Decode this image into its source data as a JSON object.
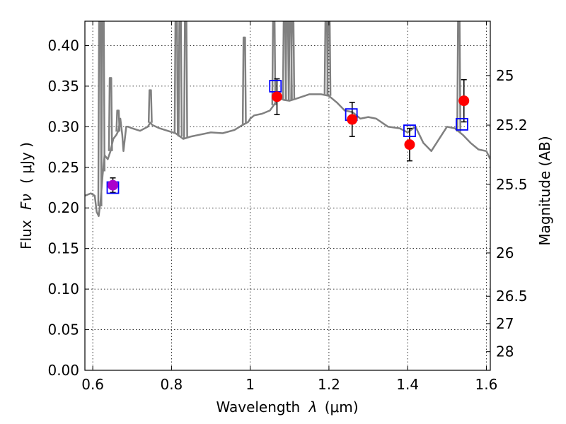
{
  "chart_data": {
    "type": "line",
    "xlabel": "Wavelength",
    "xlabel_symbol": "λ",
    "xlabel_unit": "(μm)",
    "ylabel": "Flux",
    "ylabel_symbol": "Fν",
    "ylabel_unit": "( μJy )",
    "y2label": "Magnitude (AB)",
    "xlim": [
      0.58,
      1.61
    ],
    "ylim": [
      0.0,
      0.43
    ],
    "grid": true,
    "x_ticks": [
      {
        "value": 0.6,
        "label": "0.6"
      },
      {
        "value": 0.8,
        "label": "0.8"
      },
      {
        "value": 1.0,
        "label": "1"
      },
      {
        "value": 1.2,
        "label": "1.2"
      },
      {
        "value": 1.4,
        "label": "1.4"
      },
      {
        "value": 1.6,
        "label": "1.6"
      }
    ],
    "y_ticks": [
      {
        "value": 0.0,
        "label": "0.00"
      },
      {
        "value": 0.05,
        "label": "0.05"
      },
      {
        "value": 0.1,
        "label": "0.10"
      },
      {
        "value": 0.15,
        "label": "0.15"
      },
      {
        "value": 0.2,
        "label": "0.20"
      },
      {
        "value": 0.25,
        "label": "0.25"
      },
      {
        "value": 0.3,
        "label": "0.30"
      },
      {
        "value": 0.35,
        "label": "0.35"
      },
      {
        "value": 0.4,
        "label": "0.40"
      }
    ],
    "y2_ticks": [
      {
        "value": 25,
        "label": "25"
      },
      {
        "value": 25.2,
        "label": "25.2"
      },
      {
        "value": 25.5,
        "label": "25.5"
      },
      {
        "value": 26,
        "label": "26"
      },
      {
        "value": 26.5,
        "label": "26.5"
      },
      {
        "value": 27,
        "label": "27"
      },
      {
        "value": 28,
        "label": "28"
      }
    ],
    "series": [
      {
        "name": "model spectrum",
        "kind": "line",
        "color": "#808080",
        "x": [
          0.58,
          0.595,
          0.605,
          0.61,
          0.615,
          0.62,
          0.625,
          0.63,
          0.638,
          0.645,
          0.652,
          0.66,
          0.665,
          0.67,
          0.675,
          0.678,
          0.685,
          0.69,
          0.7,
          0.72,
          0.74,
          0.746,
          0.752,
          0.77,
          0.79,
          0.81,
          0.83,
          0.85,
          0.87,
          0.9,
          0.93,
          0.96,
          0.98,
          0.995,
          1.0,
          1.01,
          1.03,
          1.05,
          1.065,
          1.075,
          1.085,
          1.1,
          1.12,
          1.15,
          1.18,
          1.2,
          1.22,
          1.24,
          1.26,
          1.28,
          1.3,
          1.32,
          1.35,
          1.38,
          1.4,
          1.42,
          1.44,
          1.46,
          1.48,
          1.5,
          1.52,
          1.54,
          1.56,
          1.58,
          1.6,
          1.61
        ],
        "y": [
          0.215,
          0.218,
          0.215,
          0.195,
          0.19,
          0.21,
          0.24,
          0.265,
          0.26,
          0.27,
          0.285,
          0.29,
          0.295,
          0.31,
          0.29,
          0.27,
          0.3,
          0.3,
          0.298,
          0.295,
          0.3,
          0.305,
          0.302,
          0.298,
          0.295,
          0.292,
          0.285,
          0.288,
          0.29,
          0.293,
          0.292,
          0.296,
          0.302,
          0.306,
          0.31,
          0.314,
          0.316,
          0.32,
          0.33,
          0.335,
          0.333,
          0.332,
          0.335,
          0.34,
          0.34,
          0.338,
          0.33,
          0.32,
          0.318,
          0.31,
          0.312,
          0.31,
          0.3,
          0.298,
          0.293,
          0.3,
          0.28,
          0.27,
          0.285,
          0.3,
          0.298,
          0.29,
          0.28,
          0.272,
          0.27,
          0.26
        ]
      },
      {
        "name": "model spectrum emission lines",
        "kind": "spikes",
        "color": "#808080",
        "x": [
          0.618,
          0.626,
          0.645,
          0.664,
          0.746,
          0.812,
          0.822,
          0.836,
          0.985,
          1.06,
          1.087,
          1.094,
          1.102,
          1.108,
          1.193,
          1.2,
          1.53
        ],
        "y": [
          0.43,
          0.43,
          0.36,
          0.32,
          0.345,
          0.43,
          0.43,
          0.43,
          0.41,
          0.43,
          0.43,
          0.43,
          0.43,
          0.43,
          0.43,
          0.43,
          0.43
        ]
      },
      {
        "name": "observed photometry",
        "kind": "points",
        "color": "#ff0000",
        "x": [
          0.651,
          1.068,
          1.259,
          1.405,
          1.543
        ],
        "y": [
          0.228,
          0.337,
          0.309,
          0.278,
          0.332
        ],
        "err": [
          0.009,
          0.022,
          0.021,
          0.02,
          0.026
        ]
      },
      {
        "name": "model photometry",
        "kind": "squares",
        "color": "#0000ff",
        "x": [
          0.651,
          1.064,
          1.257,
          1.405,
          1.538
        ],
        "y": [
          0.225,
          0.35,
          0.315,
          0.295,
          0.303
        ]
      }
    ]
  }
}
